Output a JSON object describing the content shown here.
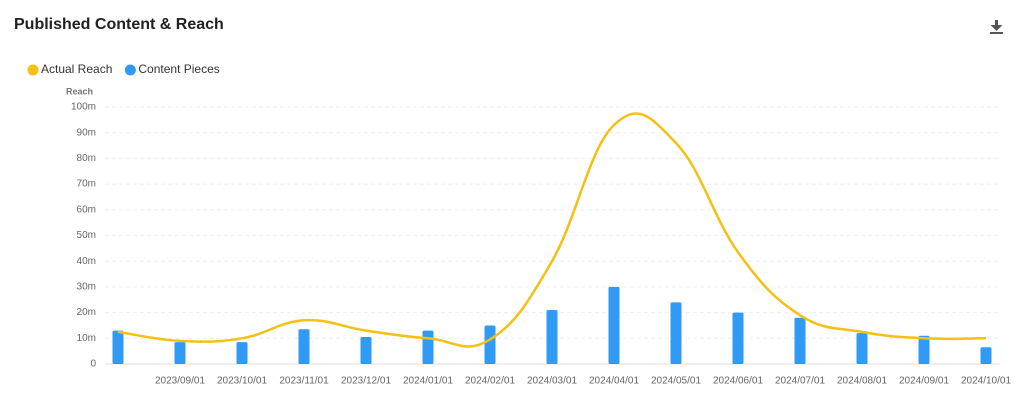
{
  "title": "Published Content & Reach",
  "chart_data": {
    "type": "bar-line",
    "y_label": "Reach",
    "categories": [
      null,
      "2023/09/01",
      "2023/10/01",
      "2023/11/01",
      "2023/12/01",
      "2024/01/01",
      "2024/02/01",
      "2024/03/01",
      "2024/04/01",
      "2024/05/01",
      "2024/06/01",
      "2024/07/01",
      "2024/08/01",
      "2024/09/01",
      "2024/10/01"
    ],
    "series": [
      {
        "name": "Actual Reach",
        "type": "line",
        "color": "#f5c014",
        "values": [
          12.5,
          9,
          10,
          17,
          13,
          10,
          9.5,
          40,
          93,
          86,
          43.5,
          19,
          12.5,
          10,
          10
        ]
      },
      {
        "name": "Content Pieces",
        "type": "bar",
        "color": "#2f9bf5",
        "values": [
          13,
          8.5,
          8.5,
          13.5,
          10.5,
          13,
          15,
          21,
          30,
          24,
          20,
          18,
          12,
          11,
          6.5
        ]
      }
    ],
    "ylim": [
      0,
      100
    ],
    "yticks": [
      0,
      {
        "value": 10,
        "label": "10m"
      },
      {
        "value": 20,
        "label": "20m"
      },
      {
        "value": 30,
        "label": "30m"
      },
      {
        "value": 40,
        "label": "40m"
      },
      {
        "value": 50,
        "label": "50m"
      },
      {
        "value": 60,
        "label": "60m"
      },
      {
        "value": 70,
        "label": "70m"
      },
      {
        "value": 80,
        "label": "80m"
      },
      {
        "value": 90,
        "label": "90m"
      },
      {
        "value": 100,
        "label": "100m"
      }
    ],
    "grid": true
  }
}
